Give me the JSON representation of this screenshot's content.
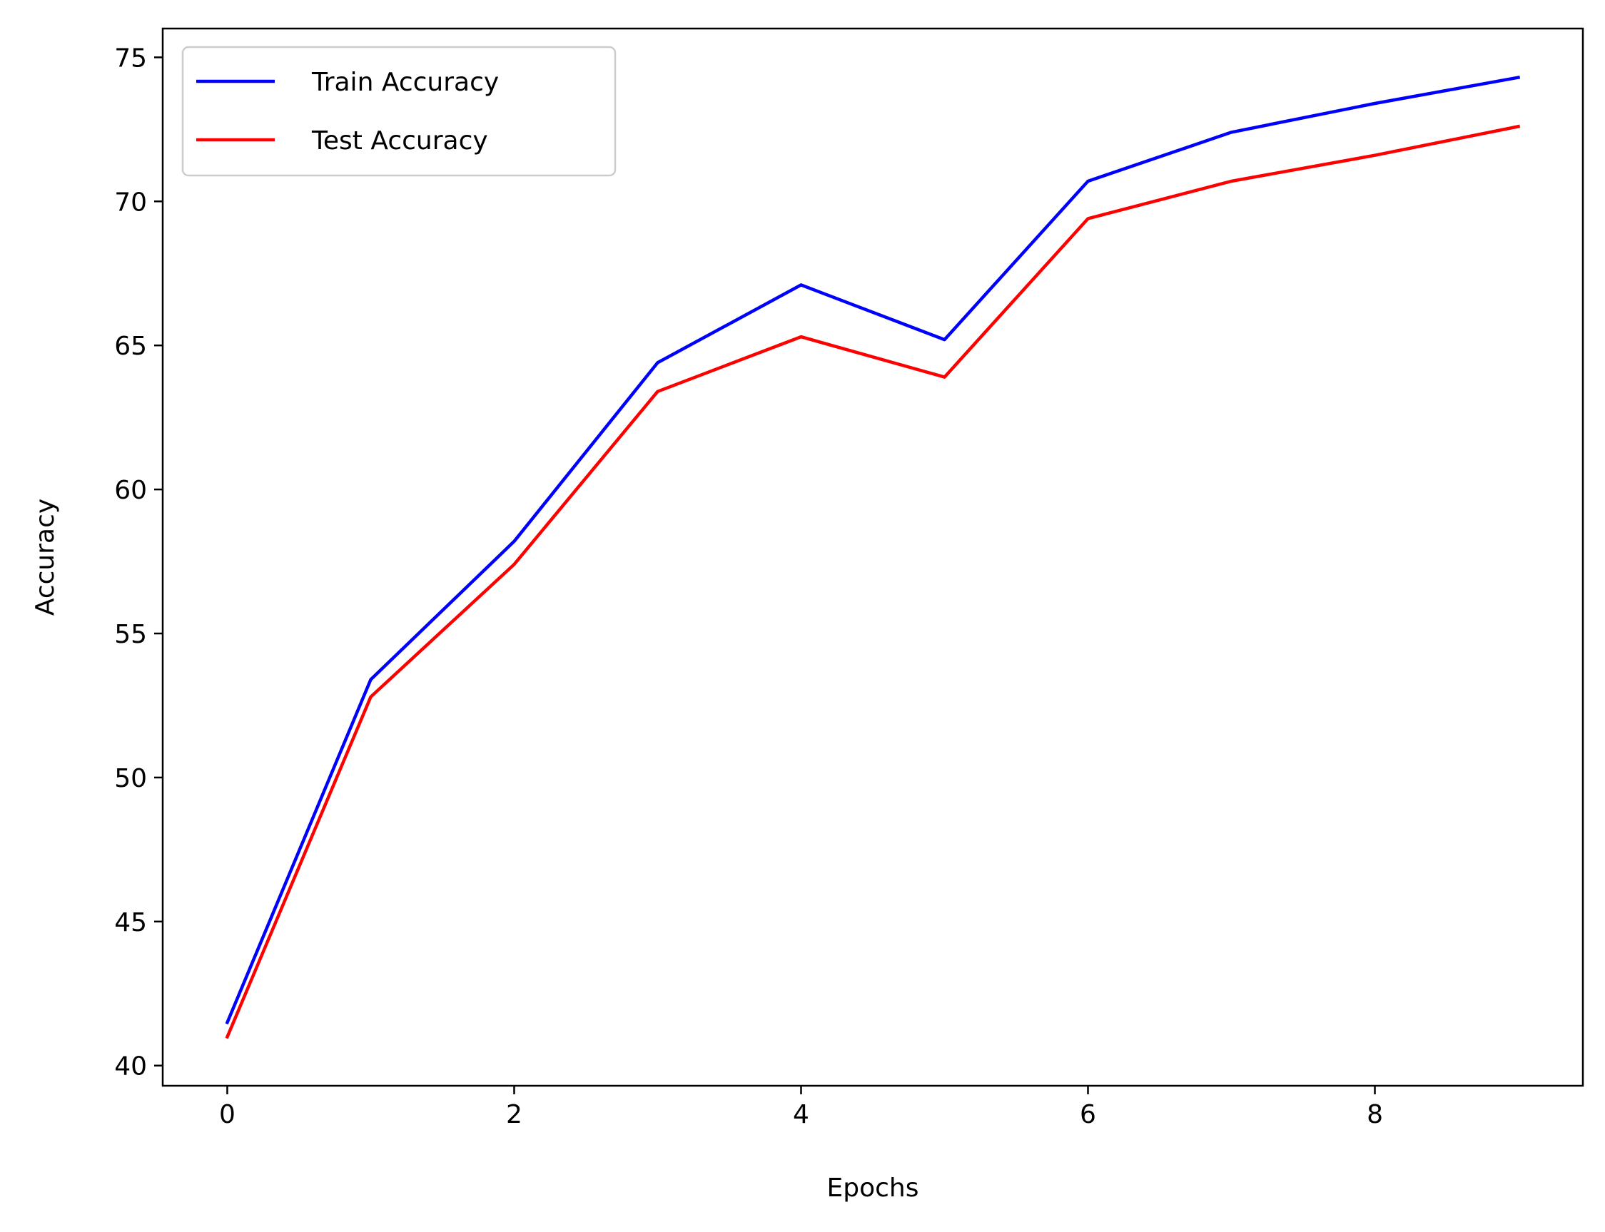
{
  "chart_data": {
    "type": "line",
    "title": "",
    "xlabel": "Epochs",
    "ylabel": "Accuracy",
    "xlim": [
      -0.45,
      9.45
    ],
    "ylim": [
      39.3,
      76.0
    ],
    "xticks": [
      0,
      2,
      4,
      6,
      8
    ],
    "yticks": [
      40,
      45,
      50,
      55,
      60,
      65,
      70,
      75
    ],
    "grid": false,
    "legend_position": "top-left",
    "x": [
      0,
      1,
      2,
      3,
      4,
      5,
      6,
      7,
      8,
      9
    ],
    "series": [
      {
        "name": "Train Accuracy",
        "color": "#0000ff",
        "values": [
          41.5,
          53.4,
          58.2,
          64.4,
          67.1,
          65.2,
          70.7,
          72.4,
          73.4,
          74.3
        ]
      },
      {
        "name": "Test Accuracy",
        "color": "#ff0000",
        "values": [
          41.0,
          52.8,
          57.4,
          63.4,
          65.3,
          63.9,
          69.4,
          70.7,
          71.6,
          72.6
        ]
      }
    ]
  }
}
